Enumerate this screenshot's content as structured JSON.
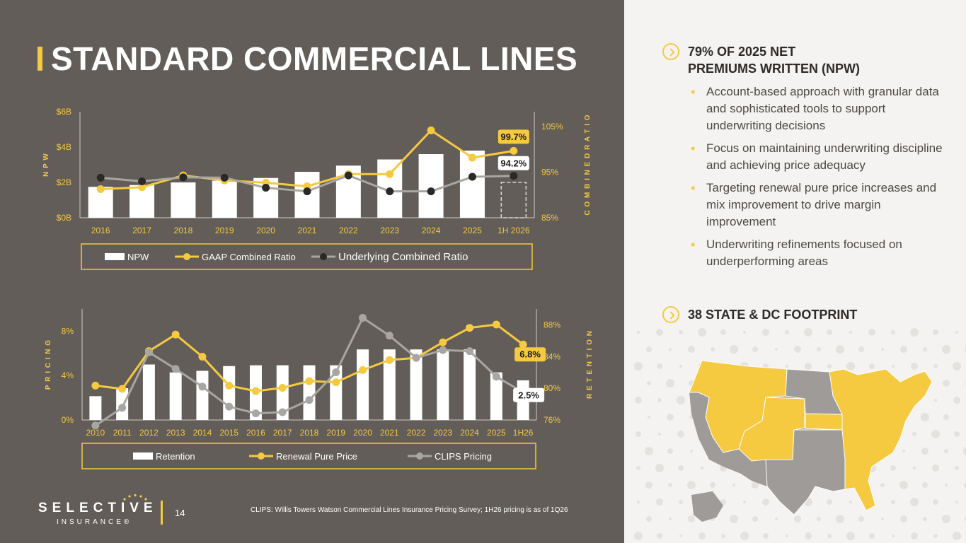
{
  "title": "STANDARD COMMERCIAL LINES",
  "chart_data": [
    {
      "type": "bar",
      "categories": [
        "2016",
        "2017",
        "2018",
        "2019",
        "2020",
        "2021",
        "2022",
        "2023",
        "2024",
        "2025",
        "1H 2026"
      ],
      "series": [
        {
          "name": "NPW",
          "type": "bar",
          "axis": "left",
          "values": [
            1.75,
            1.85,
            2.0,
            2.1,
            2.25,
            2.6,
            2.95,
            3.3,
            3.6,
            3.8,
            2.0
          ]
        },
        {
          "name": "GAAP Combined Ratio",
          "type": "line",
          "axis": "right",
          "values": [
            91.3,
            91.7,
            94.3,
            93.2,
            92.7,
            91.9,
            94.6,
            94.6,
            104.2,
            98.2,
            99.7
          ]
        },
        {
          "name": "Underlying Combined Ratio",
          "type": "line",
          "axis": "right",
          "values": [
            93.8,
            93.0,
            93.9,
            93.8,
            91.6,
            90.8,
            94.3,
            90.8,
            90.8,
            94.0,
            94.2
          ]
        }
      ],
      "ylabel": "N P W",
      "y2label": "C O M B I N E D   R A T I O",
      "yticks": [
        "$0B",
        "$2B",
        "$4B",
        "$6B"
      ],
      "ylim": [
        0,
        6
      ],
      "y2ticks": [
        "85%",
        "95%",
        "105%"
      ],
      "y2lim": [
        85,
        108.3
      ],
      "annotations": [
        {
          "label": "99.7%"
        },
        {
          "label": "94.2%"
        }
      ],
      "last_bar_style": "dashed outline",
      "legend": [
        "NPW",
        "GAAP Combined Ratio",
        "Underlying Combined Ratio"
      ],
      "legend_position": "bottom"
    },
    {
      "type": "bar",
      "categories": [
        "2010",
        "2011",
        "2012",
        "2013",
        "2014",
        "2015",
        "2016",
        "2017",
        "2018",
        "2019",
        "2020",
        "2021",
        "2022",
        "2023",
        "2024",
        "2025",
        "1H26"
      ],
      "series": [
        {
          "name": "Retention",
          "type": "bar",
          "axis": "right",
          "values": [
            79.0,
            80.0,
            83.0,
            82.0,
            82.2,
            82.8,
            82.9,
            82.9,
            82.9,
            82.9,
            84.9,
            84.9,
            84.9,
            84.9,
            84.9,
            82.0,
            81.0
          ]
        },
        {
          "name": "Renewal Pure Price",
          "type": "line",
          "axis": "left",
          "values": [
            3.1,
            2.8,
            6.2,
            7.7,
            5.7,
            3.1,
            2.6,
            2.9,
            3.5,
            3.4,
            4.5,
            5.4,
            5.6,
            7.0,
            8.3,
            8.6,
            6.8
          ]
        },
        {
          "name": "CLIPS Pricing",
          "type": "line",
          "axis": "left",
          "values": [
            -0.5,
            1.1,
            6.1,
            4.6,
            3.0,
            1.2,
            0.6,
            0.7,
            1.8,
            4.3,
            9.2,
            7.6,
            5.6,
            6.3,
            6.2,
            3.9,
            2.5
          ]
        }
      ],
      "ylabel": "P R I C I N G",
      "y2label": "R E T E N T I O N",
      "yticks": [
        "0%",
        "4%",
        "8%"
      ],
      "ylim": [
        0,
        10
      ],
      "y2ticks": [
        "76%",
        "80%",
        "84%",
        "88%"
      ],
      "y2lim": [
        76,
        90
      ],
      "annotations": [
        {
          "label": "6.8%"
        },
        {
          "label": "2.5%"
        }
      ],
      "legend": [
        "Retention",
        "Renewal Pure Price",
        "CLIPS Pricing"
      ],
      "legend_position": "bottom"
    }
  ],
  "colors": {
    "accent": "#f5c940",
    "panel": "#625d58",
    "line_dark": "#2b2927",
    "line_grey": "#a8a6a3",
    "bar": "#ffffff"
  },
  "footer": {
    "logo": "SELECTIVE",
    "logo_sub": "INSURANCE®",
    "page": "14",
    "note": "CLIPS: Willis Towers Watson Commercial Lines Insurance Pricing Survey; 1H26 pricing is as of 1Q26"
  },
  "right": {
    "heading1": "79% OF 2025 NET",
    "heading1b": "PREMIUMS WRITTEN (NPW)",
    "bullets": [
      "Account-based approach with granular data and sophisticated tools to support underwriting decisions",
      "Focus on maintaining underwriting discipline and achieving price adequacy",
      "Targeting renewal pure price increases and mix improvement to drive margin improvement",
      "Underwriting refinements focused on underperforming areas"
    ],
    "heading2": "38 STATE & DC FOOTPRINT",
    "map_icon": "us-map-icon"
  }
}
